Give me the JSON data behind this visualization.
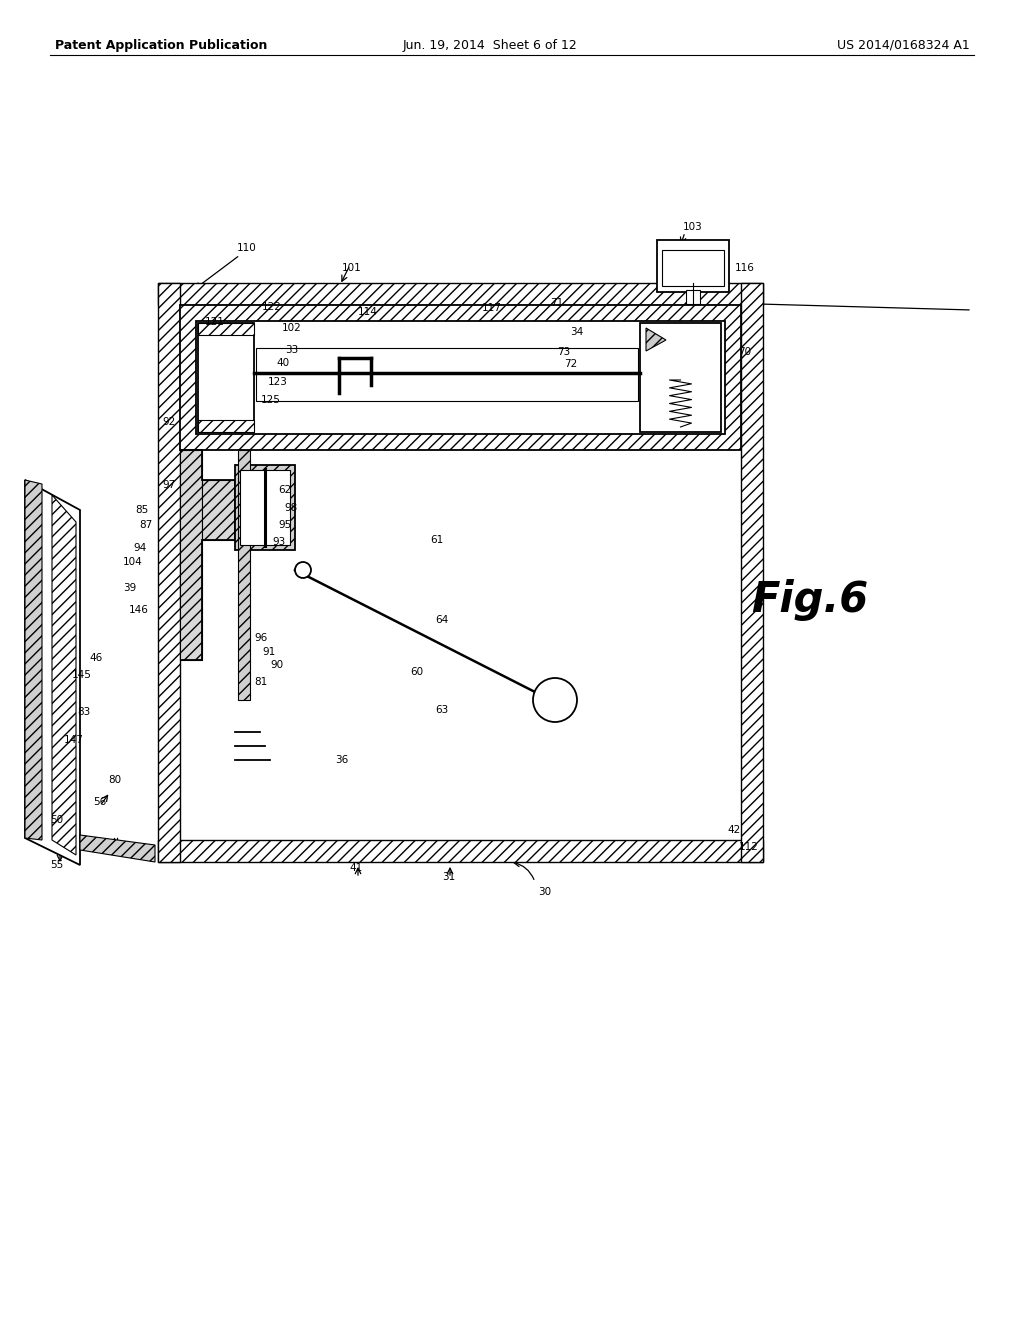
{
  "bg_color": "#ffffff",
  "header_left": "Patent Application Publication",
  "header_center": "Jun. 19, 2014  Sheet 6 of 12",
  "header_right": "US 2014/0168324 A1",
  "fig_label": "Fig.6"
}
